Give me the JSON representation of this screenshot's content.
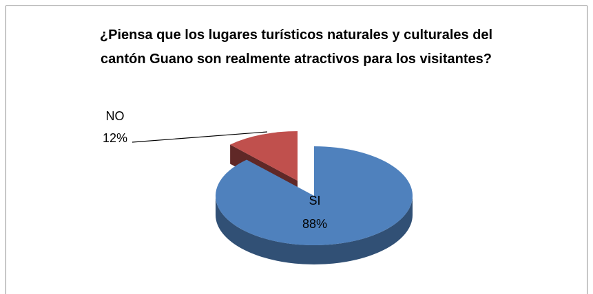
{
  "chart_data": {
    "type": "pie3d",
    "title": "¿Piensa que los lugares turísticos naturales y culturales del  cantón Guano son realmente atractivos para los visitantes?",
    "categories": [
      "SI",
      "NO"
    ],
    "values": [
      88,
      12
    ],
    "value_labels": [
      "88%",
      "12%"
    ],
    "colors": [
      "#4f81bd",
      "#c0504d"
    ],
    "exploded": [
      false,
      true
    ]
  }
}
